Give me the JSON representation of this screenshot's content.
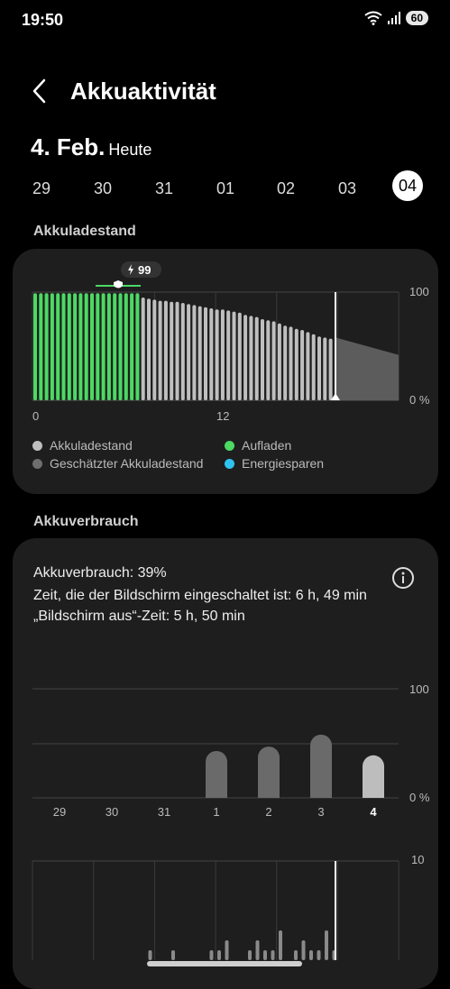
{
  "status": {
    "time": "19:50",
    "battery": "60"
  },
  "header": {
    "title": "Akkuaktivität"
  },
  "date": {
    "main": "4. Feb.",
    "sub": "Heute"
  },
  "days": [
    "29",
    "30",
    "31",
    "01",
    "02",
    "03",
    "04"
  ],
  "selected_day": "04",
  "level_section": {
    "title": "Akkuladestand",
    "badge": "99",
    "y_max": "100",
    "y_min": "0 %",
    "x_labels": [
      "0",
      "12"
    ],
    "legend": [
      {
        "label": "Akkuladestand",
        "color": "#bfbfbf"
      },
      {
        "label": "Aufladen",
        "color": "#4cd964"
      },
      {
        "label": "Geschätzter Akkuladestand",
        "color": "#6e6e6e"
      },
      {
        "label": "Energiesparen",
        "color": "#2ec4f0"
      }
    ]
  },
  "usage_section": {
    "title": "Akkuverbrauch",
    "line1": "Akkuverbrauch: 39%",
    "line2": "Zeit, die der Bildschirm eingeschaltet ist: 6 h, 49 min",
    "line3": "„Bildschirm aus“-Zeit: 5 h, 50 min",
    "y_max": "100",
    "y_min": "0 %",
    "hourly_y_max": "10"
  },
  "chart_data": [
    {
      "type": "bar",
      "title": "Akkuladestand",
      "xlabel": "",
      "ylabel": "",
      "ylim": [
        0,
        100
      ],
      "x_tick_labels": [
        "0",
        "12"
      ],
      "series": [
        {
          "name": "Aufladen",
          "color": "#4cd964",
          "values": [
            99,
            99,
            99,
            99,
            99,
            99,
            99,
            99,
            99,
            99,
            99,
            99,
            99,
            99,
            99,
            99,
            99,
            99,
            99
          ]
        },
        {
          "name": "Akkuladestand",
          "color": "#bfbfbf",
          "values": [
            95,
            94,
            93,
            92,
            92,
            91,
            91,
            90,
            89,
            88,
            87,
            86,
            85,
            84,
            84,
            83,
            82,
            81,
            79,
            78,
            77,
            75,
            74,
            73,
            71,
            69,
            68,
            66,
            65,
            63,
            61,
            59,
            58,
            57
          ]
        },
        {
          "name": "Geschätzter Akkuladestand",
          "color": "#6e6e6e",
          "values": [
            58,
            42
          ]
        }
      ]
    },
    {
      "type": "bar",
      "title": "Akkuverbrauch",
      "categories": [
        "29",
        "30",
        "31",
        "1",
        "2",
        "3",
        "4"
      ],
      "values": [
        0,
        0,
        0,
        43,
        47,
        58,
        39
      ],
      "ylim": [
        0,
        100
      ]
    },
    {
      "type": "bar",
      "title": "",
      "ylim": [
        0,
        10
      ],
      "values": [
        0,
        0,
        0,
        0,
        0,
        0,
        0,
        0,
        0,
        0,
        0,
        0,
        0,
        0,
        0,
        1,
        0,
        0,
        1,
        0,
        0,
        0,
        0,
        1,
        1,
        2,
        0,
        0,
        1,
        2,
        1,
        1,
        3,
        0,
        1,
        2,
        1,
        1,
        3,
        1,
        0,
        0
      ]
    }
  ]
}
